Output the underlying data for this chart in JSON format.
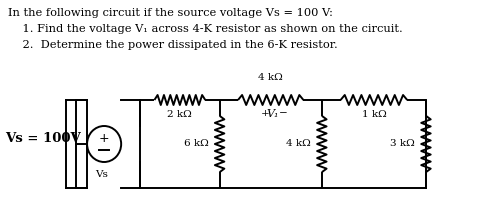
{
  "bg_color": "#ffffff",
  "text_color": "#000000",
  "line1": "In the following circuit if the source voltage Vs = 100 V:",
  "line2": "    1. Find the voltage V₁ across 4-K resistor as shown on the circuit.",
  "line3": "    2.  Determine the power dissipated in the 6-K resistor.",
  "r_top_left": "2 kΩ",
  "r_top_mid": "4 kΩ",
  "r_top_right": "1 kΩ",
  "r_vert_left": "6 kΩ",
  "r_vert_mid": "4 kΩ",
  "r_vert_right": "3 kΩ",
  "v1_plus": "+",
  "v1_label": "V₁",
  "v1_minus": "−",
  "vs_bold": "Vs = 100V",
  "vs_sub": "Vs"
}
